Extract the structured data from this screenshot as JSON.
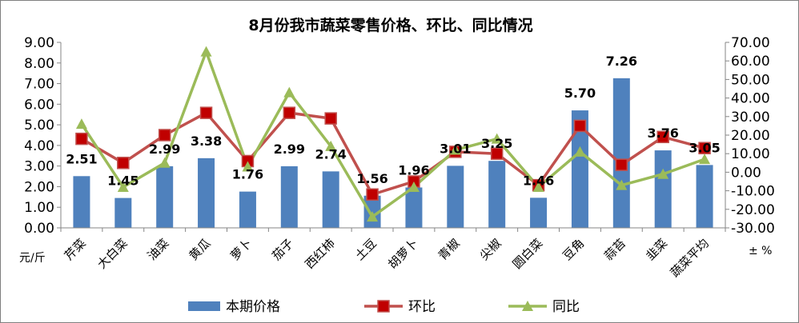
{
  "chart_data": {
    "type": "bar",
    "title": "8月份我市蔬菜零售价格、环比、同比情况",
    "y_left_unit": "元/斤",
    "y_right_unit": "± %",
    "categories": [
      "芹菜",
      "大白菜",
      "油菜",
      "黄瓜",
      "萝卜",
      "茄子",
      "西红柿",
      "土豆",
      "胡萝卜",
      "青椒",
      "尖椒",
      "圆白菜",
      "豆角",
      "蒜苔",
      "韭菜",
      "蔬菜平均"
    ],
    "y_left_ticks": [
      "0.00",
      "1.00",
      "2.00",
      "3.00",
      "4.00",
      "5.00",
      "6.00",
      "7.00",
      "8.00",
      "9.00"
    ],
    "y_right_ticks": [
      "-30.00",
      "-20.00",
      "-10.00",
      "0.00",
      "10.00",
      "20.00",
      "30.00",
      "40.00",
      "50.00",
      "60.00",
      "70.00"
    ],
    "ylim_left": [
      0,
      9
    ],
    "ylim_right": [
      -30,
      70
    ],
    "grid": false,
    "legend_position": "bottom",
    "series": [
      {
        "name": "本期价格",
        "kind": "bar",
        "axis": "left",
        "color": "#4f81bd",
        "values": [
          2.51,
          1.45,
          2.99,
          3.38,
          1.76,
          2.99,
          2.74,
          1.56,
          1.96,
          3.01,
          3.25,
          1.46,
          5.7,
          7.26,
          3.76,
          3.05
        ],
        "labels": [
          "2.51",
          "1.45",
          "2.99",
          "3.38",
          "1.76",
          "2.99",
          "2.74",
          "1.56",
          "1.96",
          "3.01",
          "3.25",
          "1.46",
          "5.70",
          "7.26",
          "3.76",
          "3.05"
        ]
      },
      {
        "name": "环比",
        "kind": "line",
        "axis": "right",
        "color": "#c0504d",
        "marker": "square",
        "values": [
          18,
          5,
          20,
          32,
          6,
          32,
          29,
          -12,
          -5,
          11,
          10,
          -7,
          25,
          4,
          19,
          13
        ]
      },
      {
        "name": "同比",
        "kind": "line",
        "axis": "right",
        "color": "#9bbb59",
        "marker": "triangle",
        "values": [
          26,
          -8,
          5,
          65,
          3,
          43,
          14,
          -24,
          -8,
          12,
          18,
          -8,
          11,
          -7,
          -1,
          7
        ]
      }
    ]
  }
}
